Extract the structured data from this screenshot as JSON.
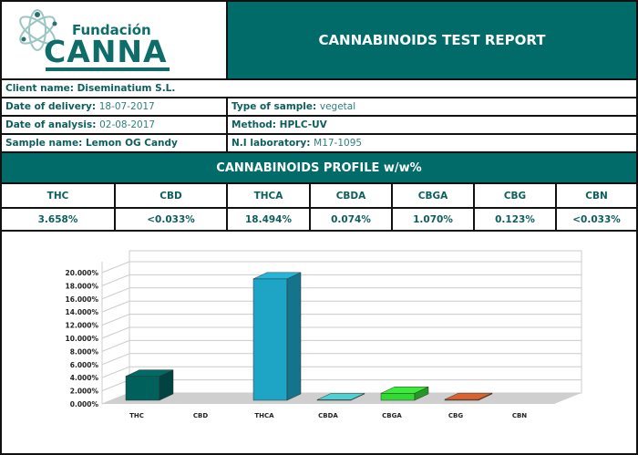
{
  "logo": {
    "line1": "Fundación",
    "line2": "CANNA"
  },
  "title": "CANNABINOIDS TEST REPORT",
  "info": {
    "client": {
      "label": "Client name:",
      "value": "Diseminatium S.L."
    },
    "delivery": {
      "label": "Date of delivery:",
      "value": "18-07-2017"
    },
    "analysis": {
      "label": "Date of analysis:",
      "value": "02-08-2017"
    },
    "sample": {
      "label": "Sample name:",
      "value": "Lemon OG Candy"
    },
    "type": {
      "label": "Type of sample:",
      "value": "vegetal"
    },
    "method": {
      "label": "Method:",
      "value": "HPLC-UV"
    },
    "lab": {
      "label": "N.I laboratory:",
      "value": "M17-1095"
    }
  },
  "profile_title": "CANNABINOIDS PROFILE w/w%",
  "table": {
    "headers": [
      "THC",
      "CBD",
      "THCA",
      "CBDA",
      "CBGA",
      "CBG",
      "CBN"
    ],
    "values": [
      "3.658%",
      "<0.033%",
      "18.494%",
      "0.074%",
      "1.070%",
      "0.123%",
      "<0.033%"
    ]
  },
  "chart_data": {
    "type": "bar",
    "categories": [
      "THC",
      "CBD",
      "THCA",
      "CBDA",
      "CBGA",
      "CBG",
      "CBN"
    ],
    "values": [
      3.658,
      0,
      18.494,
      0.074,
      1.07,
      0.123,
      0
    ],
    "ylim": [
      0,
      20
    ],
    "yticks": [
      "0.000%",
      "2.000%",
      "4.000%",
      "6.000%",
      "8.000%",
      "10.000%",
      "12.000%",
      "14.000%",
      "16.000%",
      "18.000%",
      "20.000%"
    ],
    "grid": true,
    "style": "3d",
    "colors": [
      "#00605c",
      "#888888",
      "#1ea5c6",
      "#48bcbc",
      "#34d834",
      "#c45a2a",
      "#888888"
    ]
  }
}
